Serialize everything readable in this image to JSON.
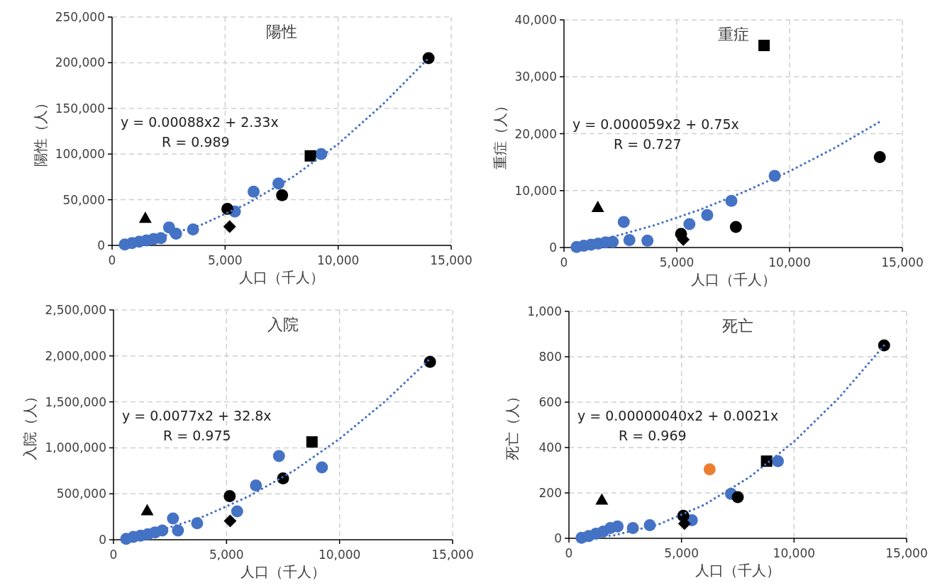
{
  "chart_data": [
    {
      "type": "scatter",
      "title": "陽性",
      "xlabel": "人口（千人）",
      "ylabel": "陽性（人）",
      "xlim": [
        0,
        15000
      ],
      "xticks": [
        {
          "value": 0,
          "label": "0"
        },
        {
          "value": 5000,
          "label": "5,000"
        },
        {
          "value": 10000,
          "label": "10,000"
        },
        {
          "value": 15000,
          "label": "15,000"
        }
      ],
      "ylim": [
        0,
        250000
      ],
      "yticks": [
        0,
        {
          "value": 50000,
          "label": "50,000"
        },
        {
          "value": 100000,
          "label": "100,000"
        },
        {
          "value": 150000,
          "label": "150,000"
        },
        {
          "value": 200000,
          "label": "200,000"
        },
        {
          "value": 250000,
          "label": "250,000"
        }
      ],
      "grid": true,
      "annotations": [
        "y = 0.00088x2 + 2.33x",
        "R = 0.989"
      ],
      "series": [
        {
          "color": "#4472c4",
          "marker": "circle",
          "x": [
            560,
            880,
            1200,
            1520,
            1840,
            2160,
            2520,
            2830,
            3580,
            5430,
            6260,
            7360,
            9250
          ],
          "values": [
            1000,
            2500,
            4000,
            5500,
            7000,
            8000,
            19700,
            12800,
            17400,
            37100,
            58900,
            67800,
            100000
          ]
        },
        {
          "color": "#000000",
          "marker": "circle",
          "x": [
            5100,
            7520,
            14000
          ],
          "values": [
            40000,
            55000,
            205000
          ]
        },
        {
          "color": "#000000",
          "marker": "square",
          "x": [
            8770
          ],
          "values": [
            98000
          ]
        },
        {
          "color": "#000000",
          "marker": "triangle",
          "x": [
            1470
          ],
          "values": [
            30000
          ]
        },
        {
          "color": "#000000",
          "marker": "diamond",
          "x": [
            5200
          ],
          "values": [
            20500
          ]
        },
        {
          "type": "line",
          "color": "#4472c4",
          "line_style": "dotted",
          "marker": "none",
          "x": [
            560,
            2000,
            4000,
            6000,
            8000,
            10000,
            12000,
            14000
          ],
          "values": [
            2000,
            8000,
            23000,
            46000,
            75000,
            111000,
            155000,
            205000
          ]
        }
      ]
    },
    {
      "type": "scatter",
      "title": "重症",
      "xlabel": "人口（千人）",
      "ylabel": "重症（人）",
      "xlim": [
        0,
        15000
      ],
      "xticks": [
        {
          "value": 0,
          "label": "0"
        },
        {
          "value": 5000,
          "label": "5,000"
        },
        {
          "value": 10000,
          "label": "10,000"
        },
        {
          "value": 15000,
          "label": "15,000"
        }
      ],
      "ylim": [
        0,
        40000
      ],
      "yticks": [
        0,
        {
          "value": 10000,
          "label": "10,000"
        },
        {
          "value": 20000,
          "label": "20,000"
        },
        {
          "value": 30000,
          "label": "30,000"
        },
        {
          "value": 40000,
          "label": "40,000"
        }
      ],
      "grid": true,
      "annotations": [
        "y = 0.000059x2 + 0.75x",
        "R = 0.727"
      ],
      "series": [
        {
          "color": "#4472c4",
          "marker": "circle",
          "x": [
            560,
            880,
            1200,
            1520,
            1840,
            2160,
            2650,
            2900,
            3700,
            5560,
            6350,
            7420,
            9340
          ],
          "values": [
            100,
            300,
            500,
            700,
            900,
            1000,
            4500,
            1300,
            1200,
            4100,
            5700,
            8200,
            12600
          ]
        },
        {
          "color": "#000000",
          "marker": "circle",
          "x": [
            5190,
            7620,
            14000
          ],
          "values": [
            2400,
            3600,
            15900
          ]
        },
        {
          "color": "#000000",
          "marker": "square",
          "x": [
            8870
          ],
          "values": [
            35500
          ]
        },
        {
          "color": "#000000",
          "marker": "triangle",
          "x": [
            1500
          ],
          "values": [
            7100
          ]
        },
        {
          "color": "#000000",
          "marker": "diamond",
          "x": [
            5290
          ],
          "values": [
            1400
          ]
        },
        {
          "type": "line",
          "color": "#4472c4",
          "line_style": "dotted",
          "marker": "none",
          "x": [
            560,
            2000,
            4000,
            6000,
            8000,
            10000,
            12000,
            14000
          ],
          "values": [
            400,
            1700,
            3900,
            6600,
            9800,
            13400,
            17500,
            22100
          ]
        }
      ]
    },
    {
      "type": "scatter",
      "title": "入院",
      "xlabel": "人口（千人）",
      "ylabel": "入院（人）",
      "xlim": [
        0,
        15000
      ],
      "xticks": [
        {
          "value": 0,
          "label": "0"
        },
        {
          "value": 5000,
          "label": "5,000"
        },
        {
          "value": 10000,
          "label": "10,000"
        },
        {
          "value": 15000,
          "label": "15,000"
        }
      ],
      "ylim": [
        0,
        2500000
      ],
      "yticks": [
        0,
        {
          "value": 500000,
          "label": "500,000"
        },
        {
          "value": 1000000,
          "label": "1,000,000"
        },
        {
          "value": 1500000,
          "label": "1,500,000"
        },
        {
          "value": 2000000,
          "label": "2,000,000"
        },
        {
          "value": 2500000,
          "label": "2,500,000"
        }
      ],
      "grid": true,
      "annotations": [
        "y = 0.0077x2 + 32.8x",
        "R = 0.975"
      ],
      "series": [
        {
          "color": "#4472c4",
          "marker": "circle",
          "x": [
            560,
            880,
            1200,
            1520,
            1840,
            2160,
            2630,
            2850,
            3700,
            5470,
            6300,
            7320,
            9220
          ],
          "values": [
            10000,
            30000,
            45000,
            60000,
            80000,
            100000,
            231000,
            100000,
            180000,
            308000,
            590000,
            910000,
            787000
          ]
        },
        {
          "color": "#000000",
          "marker": "circle",
          "x": [
            5140,
            7500,
            14000
          ],
          "values": [
            474000,
            667000,
            1934000
          ]
        },
        {
          "color": "#000000",
          "marker": "square",
          "x": [
            8780
          ],
          "values": [
            1064000
          ]
        },
        {
          "color": "#000000",
          "marker": "triangle",
          "x": [
            1490
          ],
          "values": [
            320000
          ]
        },
        {
          "color": "#000000",
          "marker": "diamond",
          "x": [
            5160
          ],
          "values": [
            205000
          ]
        },
        {
          "type": "line",
          "color": "#4472c4",
          "line_style": "dotted",
          "marker": "none",
          "x": [
            560,
            2000,
            4000,
            6000,
            8000,
            10000,
            12000,
            14000
          ],
          "values": [
            20000,
            96000,
            254000,
            474000,
            755000,
            1098000,
            1502000,
            1968000
          ]
        }
      ]
    },
    {
      "type": "scatter",
      "title": "死亡",
      "xlabel": "人口（千人）",
      "ylabel": "死亡（人）",
      "xlim": [
        0,
        15000
      ],
      "xticks": [
        {
          "value": 0,
          "label": "0"
        },
        {
          "value": 5000,
          "label": "5,000"
        },
        {
          "value": 10000,
          "label": "10,000"
        },
        {
          "value": 15000,
          "label": "15,000"
        }
      ],
      "ylim": [
        0,
        1000
      ],
      "yticks": [
        0,
        200,
        400,
        600,
        800,
        {
          "value": 1000,
          "label": "1,000"
        }
      ],
      "grid": true,
      "annotations": [
        "y = 0.00000040x2 + 0.0021x",
        "R = 0.969"
      ],
      "series": [
        {
          "color": "#4472c4",
          "marker": "circle",
          "x": [
            560,
            880,
            1200,
            1520,
            1840,
            2160,
            2840,
            3590,
            5460,
            7200,
            9280
          ],
          "values": [
            2,
            10,
            20,
            30,
            45,
            52,
            45,
            58,
            80,
            196,
            340
          ]
        },
        {
          "color": "#ed7d31",
          "marker": "circle",
          "x": [
            6250
          ],
          "values": [
            304
          ]
        },
        {
          "color": "#000000",
          "marker": "circle",
          "x": [
            5080,
            7500,
            14000
          ],
          "values": [
            99,
            181,
            850
          ]
        },
        {
          "color": "#000000",
          "marker": "square",
          "x": [
            8780
          ],
          "values": [
            340
          ]
        },
        {
          "color": "#000000",
          "marker": "triangle",
          "x": [
            1460
          ],
          "values": [
            170
          ]
        },
        {
          "color": "#000000",
          "marker": "diamond",
          "x": [
            5130
          ],
          "values": [
            65
          ]
        },
        {
          "type": "line",
          "color": "#4472c4",
          "line_style": "dotted",
          "marker": "none",
          "x": [
            560,
            2000,
            4000,
            6000,
            8000,
            10000,
            12000,
            14000
          ],
          "values": [
            2,
            13,
            62,
            147,
            268,
            426,
            620,
            850
          ]
        }
      ]
    }
  ]
}
